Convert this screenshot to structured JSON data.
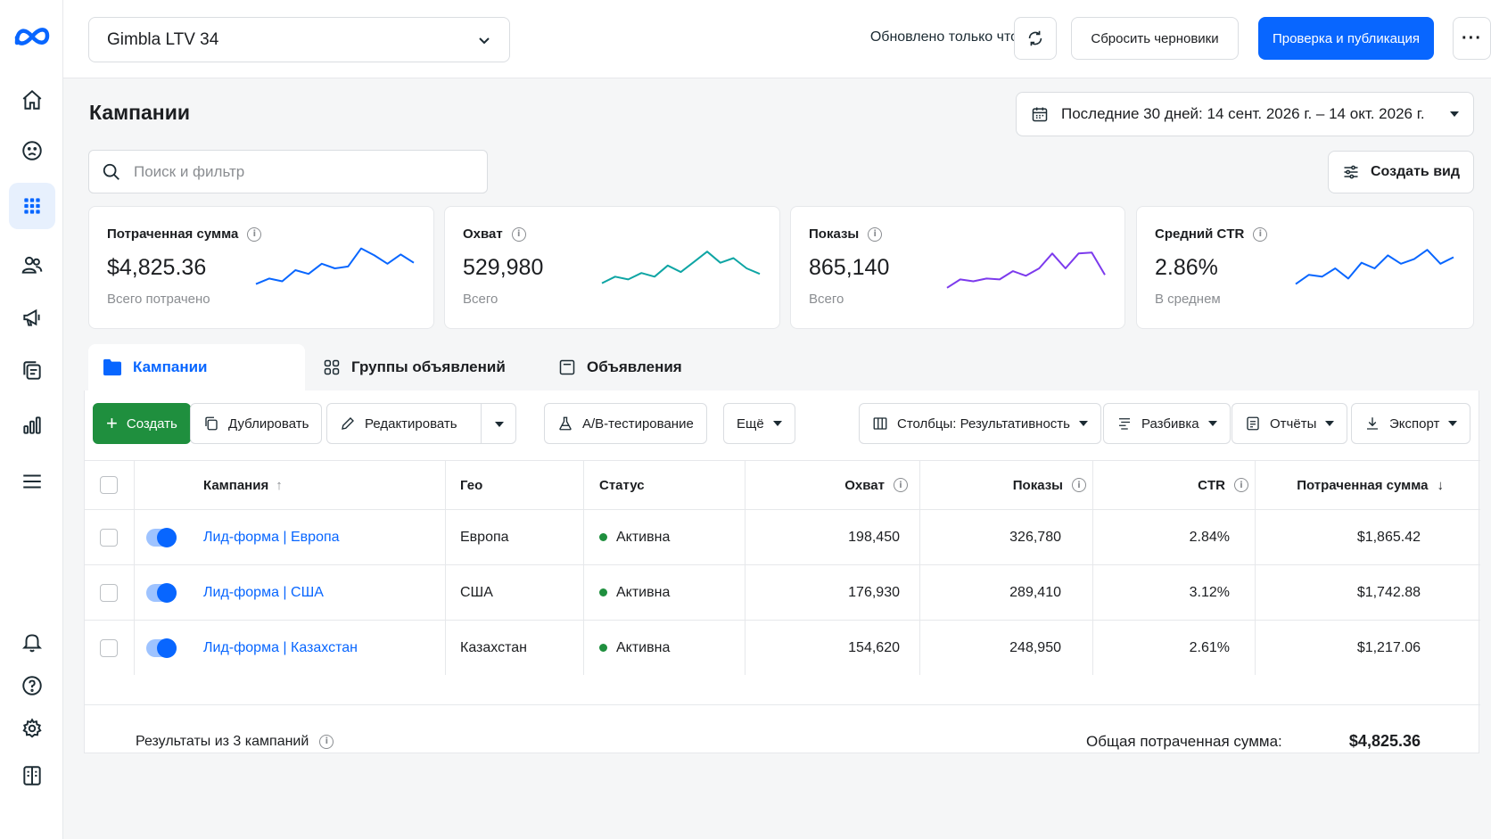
{
  "topbar": {
    "account": "Gimbla LTV 34",
    "updated": "Обновлено только что",
    "reset_label": "Сбросить черновики",
    "publish_label": "Проверка и публикация",
    "more_label": "···"
  },
  "page": {
    "title": "Кампании",
    "date_range": "Последние 30 дней: 14 сент. 2026 г. – 14 окт. 2026 г.",
    "search_placeholder": "Поиск и фильтр",
    "create_view": "Создать вид"
  },
  "metrics": [
    {
      "label": "Потраченная сумма",
      "value": "$4,825.36",
      "sub": "Всего потрачено",
      "color": "#0866ff",
      "trend": [
        0.18,
        0.3,
        0.24,
        0.48,
        0.4,
        0.62,
        0.52,
        0.56,
        0.95,
        0.8,
        0.62,
        0.82,
        0.64
      ]
    },
    {
      "label": "Охват",
      "value": "529,980",
      "sub": "Всего",
      "color": "#0ea5a4",
      "trend": [
        0.2,
        0.34,
        0.28,
        0.42,
        0.34,
        0.58,
        0.44,
        0.66,
        0.88,
        0.64,
        0.74,
        0.52,
        0.4
      ]
    },
    {
      "label": "Показы",
      "value": "865,140",
      "sub": "Всего",
      "color": "#7c3aed",
      "trend": [
        0.1,
        0.28,
        0.24,
        0.3,
        0.28,
        0.46,
        0.36,
        0.52,
        0.84,
        0.52,
        0.84,
        0.86,
        0.38
      ]
    },
    {
      "label": "Средний CTR",
      "value": "2.86%",
      "sub": "В среднем",
      "color": "#0866ff",
      "trend": [
        0.18,
        0.38,
        0.34,
        0.52,
        0.3,
        0.64,
        0.52,
        0.8,
        0.62,
        0.72,
        0.92,
        0.62,
        0.76
      ]
    }
  ],
  "tabs": [
    {
      "label": "Кампании",
      "icon": "folder-icon"
    },
    {
      "label": "Группы объявлений",
      "icon": "grid-icon"
    },
    {
      "label": "Объявления",
      "icon": "ad-icon"
    }
  ],
  "toolbar": {
    "create": "Создать",
    "duplicate": "Дублировать",
    "edit": "Редактировать",
    "ab": "A/B-тестирование",
    "more": "Ещё",
    "columns": "Столбцы: Результативность",
    "breakdown": "Разбивка",
    "reports": "Отчёты",
    "export": "Экспорт"
  },
  "table": {
    "headers": {
      "campaign": "Кампания",
      "geo": "Гео",
      "status": "Статус",
      "reach": "Охват",
      "impressions": "Показы",
      "ctr": "CTR",
      "spent": "Потраченная сумма"
    },
    "rows": [
      {
        "name": "Лид-форма | Европа",
        "geo": "Европа",
        "status": "Активна",
        "reach": "198,450",
        "impressions": "326,780",
        "ctr": "2.84%",
        "spent": "$1,865.42"
      },
      {
        "name": "Лид-форма | США",
        "geo": "США",
        "status": "Активна",
        "reach": "176,930",
        "impressions": "289,410",
        "ctr": "3.12%",
        "spent": "$1,742.88"
      },
      {
        "name": "Лид-форма | Казахстан",
        "geo": "Казахстан",
        "status": "Активна",
        "reach": "154,620",
        "impressions": "248,950",
        "ctr": "2.61%",
        "spent": "$1,217.06"
      }
    ],
    "footer_results": "Результаты из 3 кампаний",
    "footer_total_label": "Общая потраченная сумма:",
    "footer_total_value": "$4,825.36"
  }
}
